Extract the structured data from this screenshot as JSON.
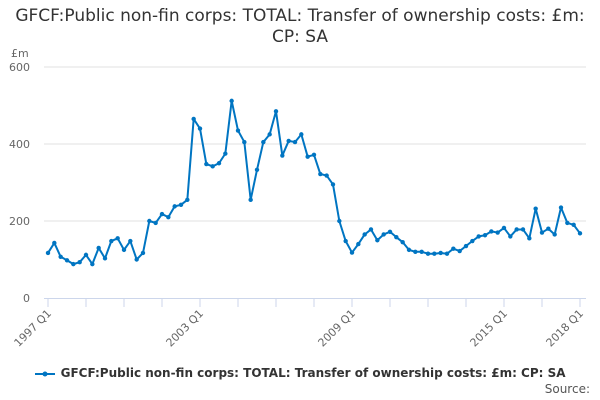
{
  "chart_data": {
    "type": "line",
    "title": "GFCF:Public non-fin corps: TOTAL: Transfer of ownership costs: £m: CP: SA",
    "ylabel": "£m",
    "ylim": [
      0,
      600
    ],
    "yticks": [
      0,
      200,
      400,
      600
    ],
    "xtick_labels": [
      "1997 Q1",
      "2003 Q1",
      "2009 Q1",
      "2015 Q1",
      "2018 Q1"
    ],
    "x_start": "1997 Q1",
    "x_end": "2018 Q1",
    "grid": true,
    "legend": "bottom",
    "color": "#0075c2",
    "series": [
      {
        "name": "GFCF:Public non-fin corps: TOTAL: Transfer of ownership costs: £m: CP: SA",
        "values": [
          117,
          143,
          107,
          98,
          88,
          93,
          112,
          88,
          130,
          103,
          148,
          155,
          125,
          148,
          100,
          117,
          200,
          195,
          218,
          210,
          238,
          242,
          255,
          465,
          440,
          348,
          342,
          350,
          375,
          512,
          435,
          405,
          255,
          333,
          405,
          425,
          485,
          370,
          408,
          405,
          425,
          367,
          372,
          322,
          318,
          295,
          200,
          148,
          118,
          140,
          165,
          178,
          150,
          165,
          172,
          158,
          145,
          125,
          120,
          120,
          115,
          115,
          117,
          115,
          128,
          122,
          135,
          148,
          160,
          163,
          173,
          170,
          182,
          160,
          178,
          178,
          155,
          232,
          170,
          180,
          165,
          235,
          195,
          190,
          168
        ]
      }
    ]
  },
  "source_label": "Source:"
}
